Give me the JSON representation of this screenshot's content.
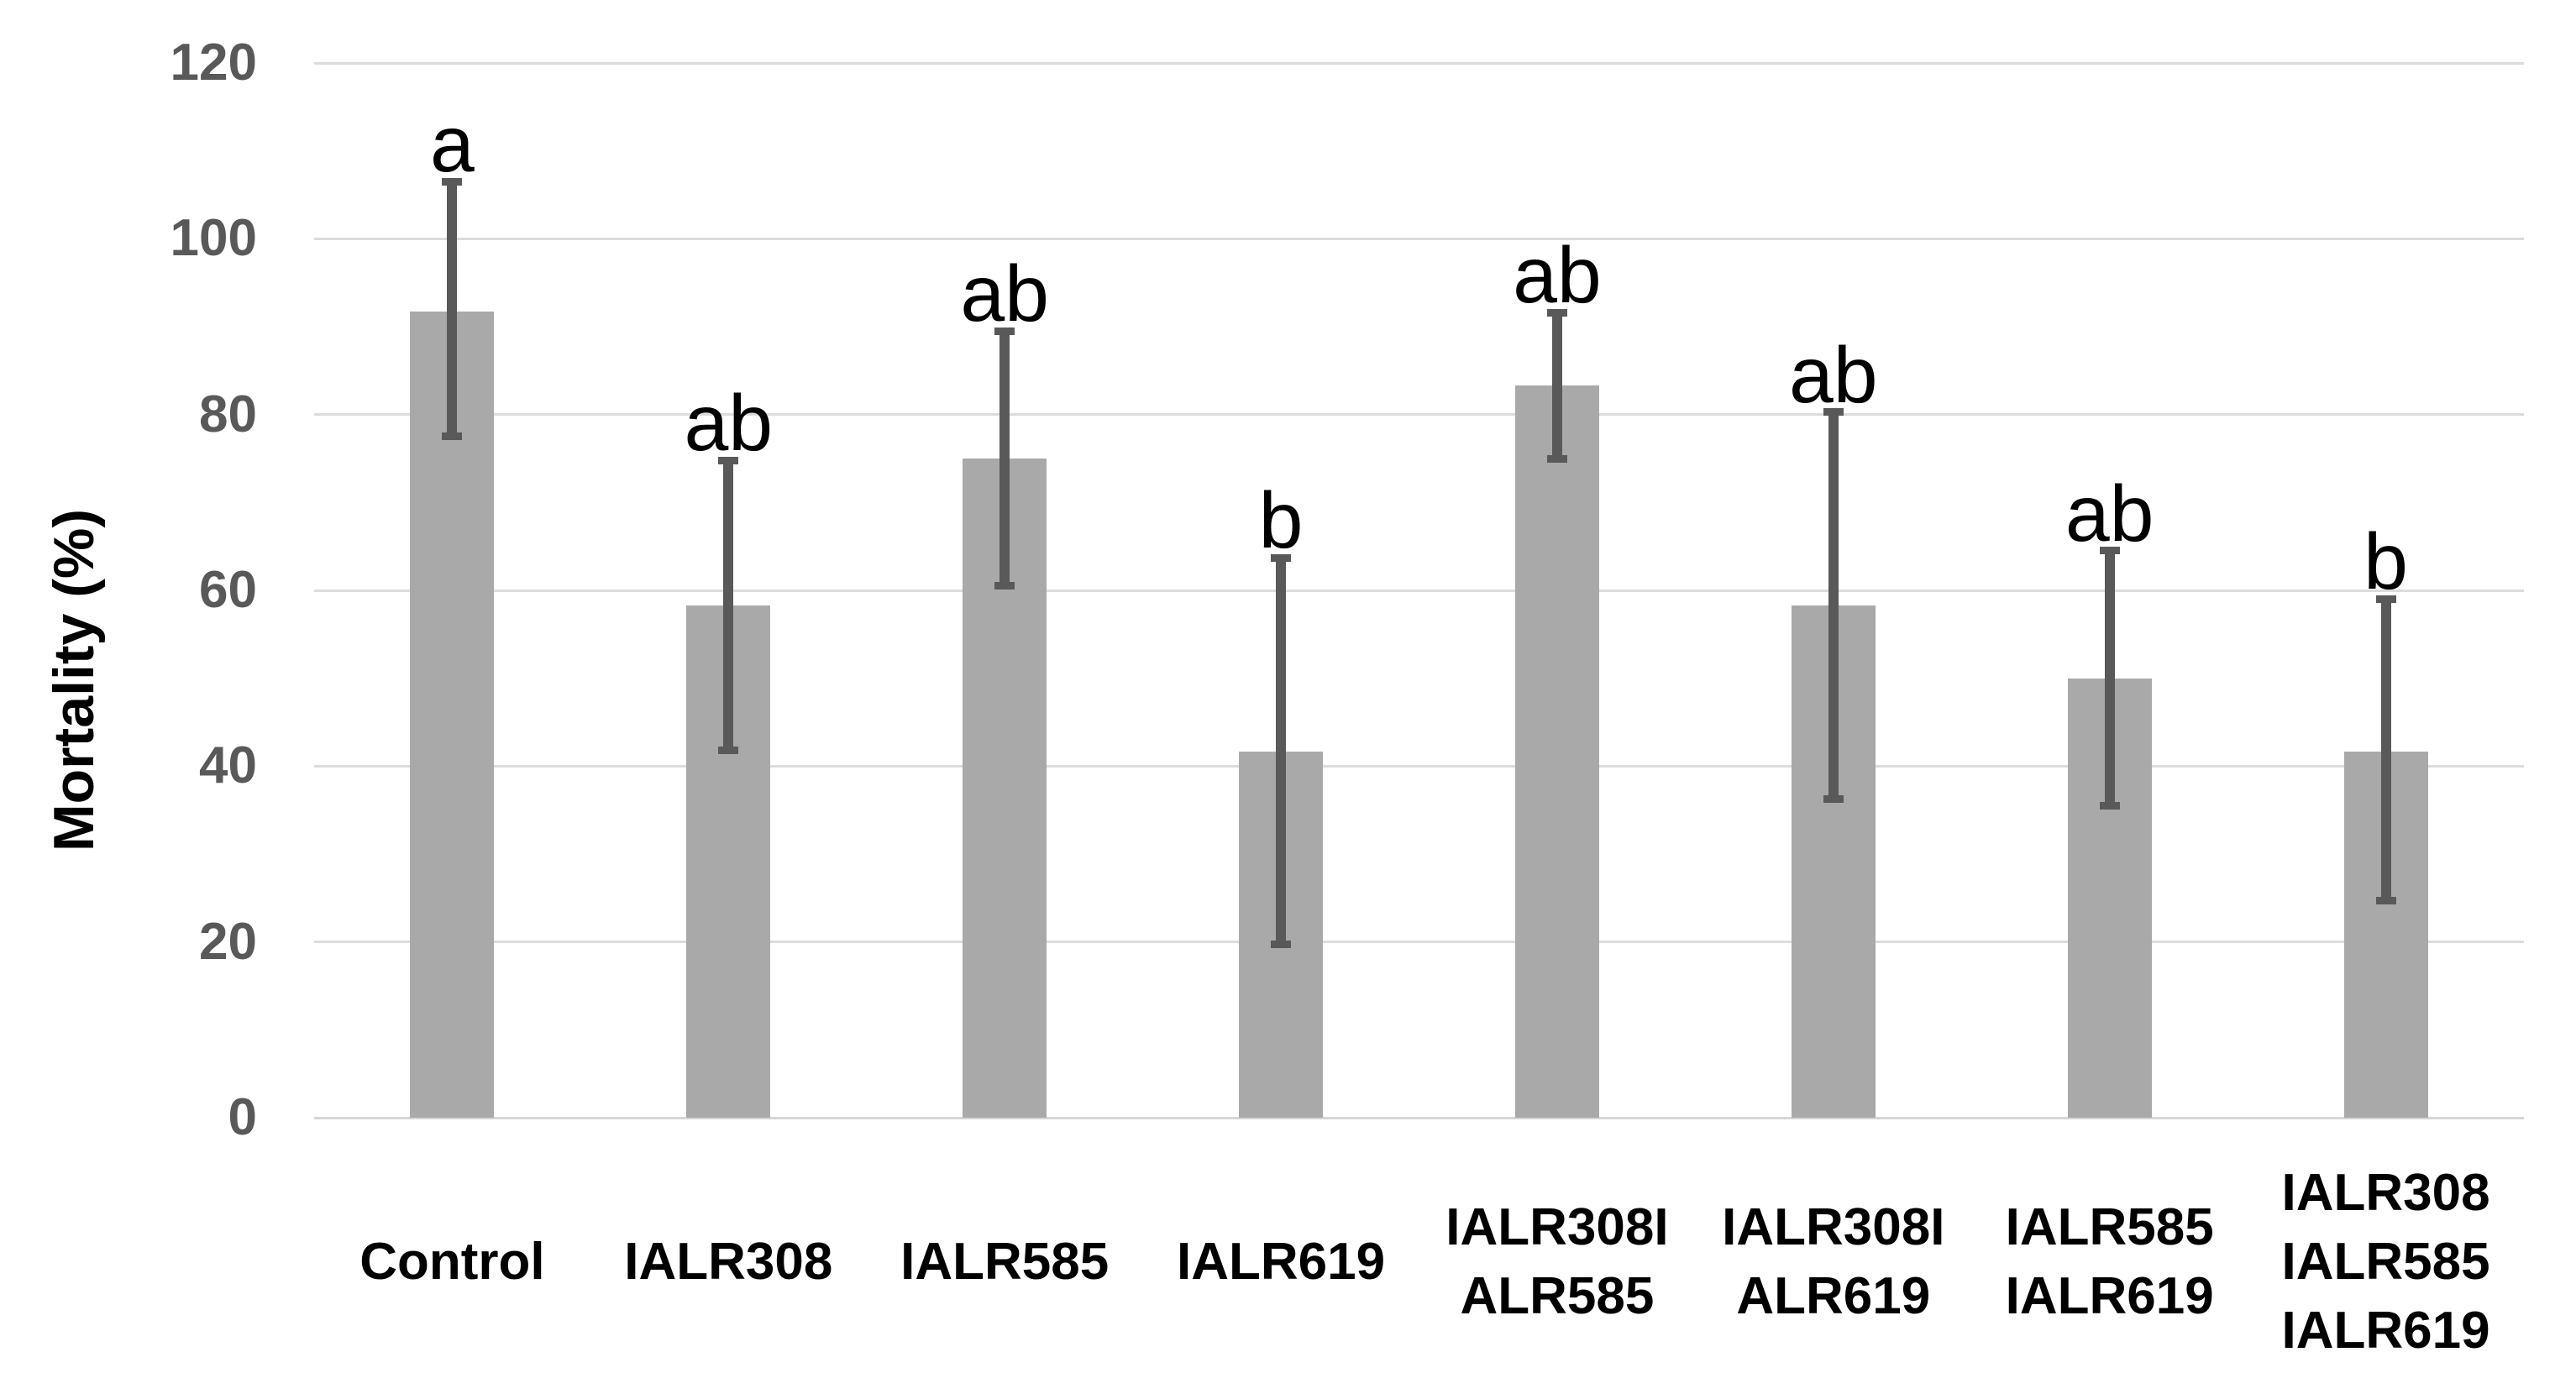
{
  "chart_data": {
    "type": "bar",
    "title": "",
    "xlabel": "",
    "ylabel": "Mortality (%)",
    "ylim": [
      0,
      120
    ],
    "yticks": [
      0,
      20,
      40,
      60,
      80,
      100,
      120
    ],
    "grid": "horizontal",
    "legend_position": "none",
    "error_bars": true,
    "categories": [
      "Control",
      "IALR308",
      "IALR585",
      "IALR619",
      "IALR308IALR585",
      "IALR308IALR619",
      "IALR585IALR619",
      "IALR308IALR585IALR619"
    ],
    "bars": [
      {
        "category": "Control",
        "label_lines": [
          "Control"
        ],
        "value": 91.7,
        "err_low": 77.5,
        "err_high": 106.5,
        "sig_letter": "a"
      },
      {
        "category": "IALR308",
        "label_lines": [
          "IALR308"
        ],
        "value": 58.3,
        "err_low": 41.8,
        "err_high": 74.8,
        "sig_letter": "ab"
      },
      {
        "category": "IALR585",
        "label_lines": [
          "IALR585"
        ],
        "value": 75.0,
        "err_low": 60.5,
        "err_high": 89.5,
        "sig_letter": "ab"
      },
      {
        "category": "IALR619",
        "label_lines": [
          "IALR619"
        ],
        "value": 41.7,
        "err_low": 19.7,
        "err_high": 63.7,
        "sig_letter": "b"
      },
      {
        "category": "IALR308IALR585",
        "label_lines": [
          "IALR308I",
          "ALR585"
        ],
        "value": 83.3,
        "err_low": 75.0,
        "err_high": 91.6,
        "sig_letter": "ab"
      },
      {
        "category": "IALR308IALR619",
        "label_lines": [
          "IALR308I",
          "ALR619"
        ],
        "value": 58.3,
        "err_low": 36.3,
        "err_high": 80.3,
        "sig_letter": "ab"
      },
      {
        "category": "IALR585IALR619",
        "label_lines": [
          "IALR585",
          "IALR619"
        ],
        "value": 50.0,
        "err_low": 35.5,
        "err_high": 64.5,
        "sig_letter": "ab"
      },
      {
        "category": "IALR308IALR585IALR619",
        "label_lines": [
          "IALR308",
          "IALR585",
          "IALR619"
        ],
        "value": 41.7,
        "err_low": 24.7,
        "err_high": 59.0,
        "sig_letter": "b"
      }
    ],
    "colors": {
      "bar_fill": "#a9a9a9",
      "error_bar": "#595959",
      "gridline": "#dcdcdc",
      "axis_line": "#d6d6d6",
      "tick_label": "#595959",
      "category_label": "#000000",
      "sig_letter": "#000000",
      "axis_title": "#000000",
      "background": "#ffffff"
    }
  }
}
